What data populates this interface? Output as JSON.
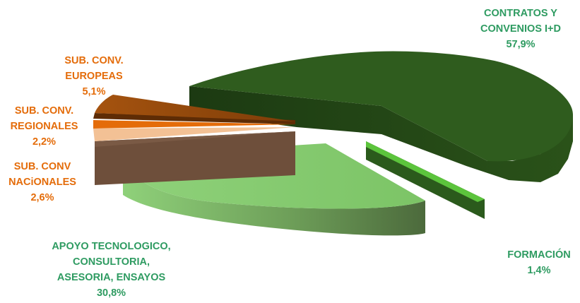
{
  "chart_data": {
    "type": "pie",
    "title": "",
    "style": "3d-exploded",
    "slices": [
      {
        "line1": "CONTRATOS Y",
        "line2": "CONVENIOS I+D",
        "value": 57.9,
        "value_label": "57,9%",
        "color": "#2f5c1e"
      },
      {
        "line1": "FORMACIÓN",
        "line2": "",
        "value": 1.4,
        "value_label": "1,4%",
        "color": "#5cc43c"
      },
      {
        "line1": "APOYO TECNOLOGICO,",
        "line2": "CONSULTORIA,",
        "line3": "ASESORIA, ENSAYOS",
        "value": 30.8,
        "value_label": "30,8%",
        "color": "#8fd17a"
      },
      {
        "line1": "SUB. CONV",
        "line2": "NACiONALES",
        "value": 2.6,
        "value_label": "2,6%",
        "color": "#7a5a45"
      },
      {
        "line1": "SUB. CONV.",
        "line2": "REGIONALES",
        "value": 2.2,
        "value_label": "2,2%",
        "color": "#f3c195"
      },
      {
        "line1": "SUB. CONV.",
        "line2": "EUROPEAS",
        "value": 5.1,
        "value_label": "5,1%",
        "color": "#a5530f"
      }
    ],
    "label_colors": {
      "green": "#2e9b61",
      "orange": "#e46c0a"
    }
  }
}
